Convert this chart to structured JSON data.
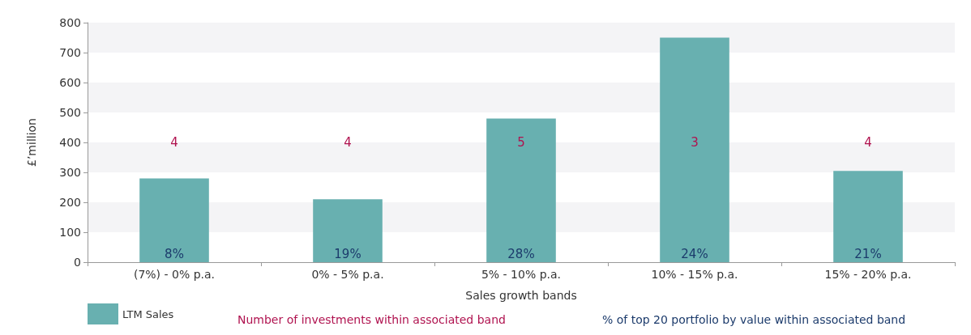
{
  "chart_data": {
    "type": "bar",
    "xlabel": "Sales growth bands",
    "ylabel": "£’million",
    "categories": [
      "(7%) - 0% p.a.",
      "0% - 5% p.a.",
      "5% - 10% p.a.",
      "10% - 15% p.a.",
      "15% - 20% p.a."
    ],
    "series": [
      {
        "name": "LTM Sales",
        "color": "#68b0b0",
        "values": [
          280,
          210,
          480,
          750,
          305
        ]
      }
    ],
    "ylim": [
      0,
      800
    ],
    "yticks": [
      0,
      100,
      200,
      300,
      400,
      500,
      600,
      700,
      800
    ],
    "legend": "bottom left",
    "annotations": [
      "4",
      "4",
      "5",
      "3",
      "4",
      "8%",
      "19%",
      "28%",
      "24%",
      "21%",
      "Number of investments within associated band",
      "% of top 20 portfolio by value within associated band"
    ]
  }
}
